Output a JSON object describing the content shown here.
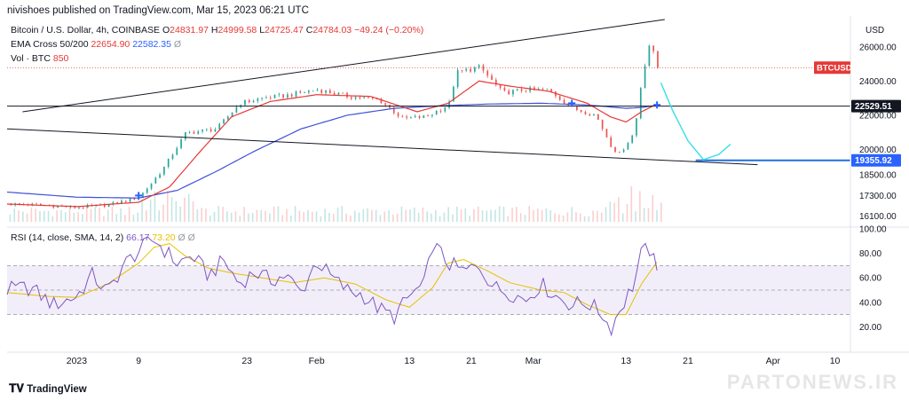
{
  "header": {
    "published": "nivishoes published on TradingView.com, Mar 15, 2023 06:21 UTC",
    "symbol": "Bitcoin / U.S. Dollar, 4h, COINBASE",
    "o_label": "O",
    "o_value": "24831.97",
    "h_label": "H",
    "h_value": "24999.58",
    "l_label": "L",
    "l_value": "24725.47",
    "c_label": "C",
    "c_value": "24784.03",
    "change": "−49.24 (−0.20%)",
    "ema_label": "EMA Cross 50/200",
    "ema_fast": "22654.90",
    "ema_slow": "22582.35",
    "ema_eye": "Ø",
    "vol_label": "Vol · BTC",
    "vol_value": "850",
    "rsi_label": "RSI (14, close, SMA, 14, 2)",
    "rsi_value": "66.17",
    "rsi_ma": "73.20",
    "rsi_sym1": "Ø",
    "rsi_sym2": "Ø"
  },
  "colors": {
    "up": "#26a69a",
    "down": "#ef5350",
    "ema_fast": "#e53935",
    "ema_slow": "#3f51d8",
    "rsi": "#7e57c2",
    "rsi_ma": "#e5c100",
    "projection": "#40e0e8",
    "support": "#1e6fe0",
    "tag_red": "#e53935",
    "tag_dark": "#131722",
    "tag_blue": "#2962ff"
  },
  "chart_data": [
    {
      "type": "candlestick",
      "title": "Bitcoin / U.S. Dollar, 4h, COINBASE",
      "unit": "USD",
      "ylim": [
        15500,
        27600
      ],
      "y_ticks": [
        "26000.00",
        "24000.00",
        "22000.00",
        "20000.00",
        "18500.00",
        "17300.00",
        "16100.00"
      ],
      "y_tick_values": [
        26000,
        24000,
        22000,
        20000,
        18500,
        17300,
        16100
      ],
      "x_ticks": [
        "2023",
        "9",
        "23",
        "Feb",
        "13",
        "21",
        "Mar",
        "13",
        "21",
        "Apr",
        "10"
      ],
      "x_tick_days": [
        0,
        8,
        22,
        31,
        43,
        51,
        59,
        71,
        79,
        90,
        98
      ],
      "x_range_days": [
        -9,
        100
      ],
      "price_path": [
        [
          -9,
          16800
        ],
        [
          -5,
          16750
        ],
        [
          0,
          16600
        ],
        [
          4,
          16750
        ],
        [
          8,
          17200
        ],
        [
          11,
          18800
        ],
        [
          14,
          20950
        ],
        [
          18,
          21200
        ],
        [
          21,
          22700
        ],
        [
          24,
          23000
        ],
        [
          27,
          23150
        ],
        [
          31,
          23500
        ],
        [
          35,
          23100
        ],
        [
          39,
          22900
        ],
        [
          42,
          21800
        ],
        [
          45,
          21900
        ],
        [
          48,
          22600
        ],
        [
          49,
          24500
        ],
        [
          52,
          24800
        ],
        [
          55,
          23300
        ],
        [
          58,
          23500
        ],
        [
          61,
          23450
        ],
        [
          64,
          22400
        ],
        [
          67,
          22000
        ],
        [
          69,
          20200
        ],
        [
          70,
          19700
        ],
        [
          72,
          21000
        ],
        [
          73,
          24300
        ],
        [
          74,
          26300
        ],
        [
          75,
          24784
        ]
      ],
      "ema_fast_path": [
        [
          -9,
          16800
        ],
        [
          0,
          16650
        ],
        [
          8,
          16900
        ],
        [
          12,
          17800
        ],
        [
          16,
          19900
        ],
        [
          20,
          21900
        ],
        [
          25,
          22800
        ],
        [
          31,
          23200
        ],
        [
          38,
          23100
        ],
        [
          44,
          22200
        ],
        [
          48,
          22700
        ],
        [
          52,
          24000
        ],
        [
          56,
          23700
        ],
        [
          61,
          23400
        ],
        [
          66,
          22700
        ],
        [
          69,
          21900
        ],
        [
          71,
          21600
        ],
        [
          73,
          22200
        ],
        [
          75,
          22655
        ]
      ],
      "ema_slow_path": [
        [
          -9,
          17500
        ],
        [
          0,
          17200
        ],
        [
          8,
          17150
        ],
        [
          13,
          17600
        ],
        [
          18,
          18700
        ],
        [
          23,
          19900
        ],
        [
          29,
          21200
        ],
        [
          35,
          22000
        ],
        [
          41,
          22400
        ],
        [
          47,
          22550
        ],
        [
          53,
          22650
        ],
        [
          60,
          22700
        ],
        [
          66,
          22600
        ],
        [
          71,
          22400
        ],
        [
          73,
          22450
        ],
        [
          75,
          22582
        ]
      ],
      "resistance_line": [
        [
          -7,
          22200
        ],
        [
          76,
          27600
        ]
      ],
      "support_line": [
        [
          -9,
          21200
        ],
        [
          88,
          19100
        ]
      ],
      "horizontal_line": {
        "value": 22529.51,
        "label": "22529.51"
      },
      "support_level": {
        "value": 19355.92,
        "label": "19355.92",
        "from_day": 80
      },
      "projection_path": [
        [
          75.5,
          23900
        ],
        [
          77,
          22300
        ],
        [
          79,
          20500
        ],
        [
          81,
          19400
        ],
        [
          83,
          19700
        ],
        [
          84.5,
          20300
        ]
      ],
      "markers": [
        [
          8,
          17300
        ],
        [
          64,
          22700
        ],
        [
          75,
          22600
        ]
      ],
      "last_price_tag": "BTCUSD",
      "volume_label": "Vol · BTC"
    },
    {
      "type": "line",
      "title": "RSI (14, close, SMA, 14, 2)",
      "ylim": [
        0,
        100
      ],
      "y_ticks": [
        "100.00",
        "80.00",
        "60.00",
        "40.00",
        "20.00"
      ],
      "y_tick_values": [
        100,
        80,
        60,
        40,
        20
      ],
      "band": [
        30,
        70
      ],
      "midline": 50,
      "rsi_path": [
        [
          -9,
          50
        ],
        [
          -6,
          52
        ],
        [
          -3,
          38
        ],
        [
          0,
          45
        ],
        [
          2,
          62
        ],
        [
          4,
          48
        ],
        [
          6,
          70
        ],
        [
          8,
          82
        ],
        [
          10,
          92
        ],
        [
          11,
          85
        ],
        [
          13,
          72
        ],
        [
          15,
          78
        ],
        [
          17,
          62
        ],
        [
          19,
          74
        ],
        [
          21,
          55
        ],
        [
          23,
          65
        ],
        [
          25,
          58
        ],
        [
          27,
          62
        ],
        [
          29,
          48
        ],
        [
          31,
          74
        ],
        [
          33,
          60
        ],
        [
          35,
          50
        ],
        [
          37,
          46
        ],
        [
          39,
          35
        ],
        [
          41,
          28
        ],
        [
          43,
          45
        ],
        [
          45,
          55
        ],
        [
          46,
          88
        ],
        [
          48,
          72
        ],
        [
          50,
          65
        ],
        [
          52,
          70
        ],
        [
          54,
          52
        ],
        [
          56,
          48
        ],
        [
          58,
          42
        ],
        [
          60,
          55
        ],
        [
          62,
          45
        ],
        [
          64,
          38
        ],
        [
          66,
          40
        ],
        [
          68,
          30
        ],
        [
          69,
          18
        ],
        [
          70,
          32
        ],
        [
          72,
          55
        ],
        [
          73,
          80
        ],
        [
          74,
          84
        ],
        [
          75,
          66
        ]
      ],
      "ma_path": [
        [
          -9,
          48
        ],
        [
          -4,
          45
        ],
        [
          0,
          44
        ],
        [
          4,
          55
        ],
        [
          8,
          72
        ],
        [
          10,
          85
        ],
        [
          12,
          88
        ],
        [
          14,
          78
        ],
        [
          17,
          68
        ],
        [
          20,
          64
        ],
        [
          24,
          60
        ],
        [
          28,
          56
        ],
        [
          32,
          60
        ],
        [
          36,
          55
        ],
        [
          40,
          42
        ],
        [
          43,
          36
        ],
        [
          46,
          52
        ],
        [
          48,
          72
        ],
        [
          50,
          75
        ],
        [
          53,
          66
        ],
        [
          56,
          56
        ],
        [
          60,
          50
        ],
        [
          63,
          48
        ],
        [
          66,
          38
        ],
        [
          69,
          30
        ],
        [
          71,
          30
        ],
        [
          73,
          55
        ],
        [
          75,
          73
        ]
      ]
    }
  ],
  "footer": {
    "brand_text": "TradingView",
    "watermark": "PARTONEWS.IR"
  },
  "axis": {
    "unit_label": "USD"
  }
}
